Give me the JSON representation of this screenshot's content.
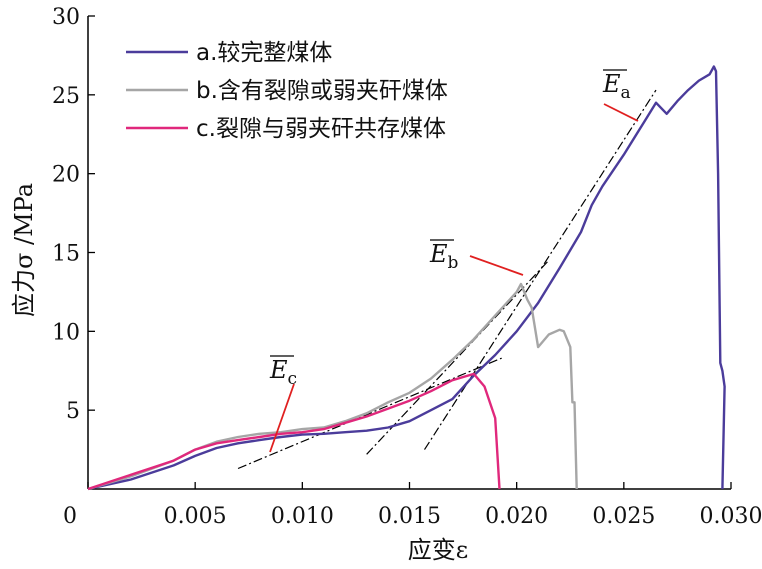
{
  "chart_data": {
    "type": "line",
    "xlabel": "应变ε",
    "ylabel": "应力σ /MPa",
    "xlim": [
      0,
      0.03
    ],
    "ylim": [
      0,
      30
    ],
    "x_ticks": [
      0,
      0.005,
      0.01,
      0.015,
      0.02,
      0.025,
      0.03
    ],
    "x_tick_labels": [
      "0",
      "0.005",
      "0.010",
      "0.015",
      "0.020",
      "0.025",
      "0.030"
    ],
    "y_ticks": [
      5,
      10,
      15,
      20,
      25,
      30
    ],
    "y_tick_labels": [
      "5",
      "10",
      "15",
      "20",
      "25",
      "30"
    ],
    "grid": false,
    "legend_position": "top-left",
    "series": [
      {
        "name": "a.较完整煤体",
        "color": "#4B3C9B",
        "points": [
          [
            0,
            0
          ],
          [
            0.002,
            0.6
          ],
          [
            0.004,
            1.5
          ],
          [
            0.005,
            2.1
          ],
          [
            0.006,
            2.6
          ],
          [
            0.007,
            2.9
          ],
          [
            0.008,
            3.1
          ],
          [
            0.009,
            3.3
          ],
          [
            0.01,
            3.45
          ],
          [
            0.011,
            3.5
          ],
          [
            0.012,
            3.6
          ],
          [
            0.013,
            3.7
          ],
          [
            0.014,
            3.9
          ],
          [
            0.015,
            4.3
          ],
          [
            0.016,
            5.0
          ],
          [
            0.017,
            5.7
          ],
          [
            0.018,
            7.2
          ],
          [
            0.019,
            8.5
          ],
          [
            0.02,
            10.0
          ],
          [
            0.021,
            11.8
          ],
          [
            0.022,
            14.0
          ],
          [
            0.023,
            16.3
          ],
          [
            0.0235,
            18.0
          ],
          [
            0.024,
            19.2
          ],
          [
            0.025,
            21.2
          ],
          [
            0.026,
            23.4
          ],
          [
            0.0265,
            24.5
          ],
          [
            0.027,
            23.8
          ],
          [
            0.0275,
            24.6
          ],
          [
            0.028,
            25.3
          ],
          [
            0.0285,
            25.9
          ],
          [
            0.029,
            26.3
          ],
          [
            0.0292,
            26.8
          ],
          [
            0.0293,
            26.5
          ],
          [
            0.0294,
            20.0
          ],
          [
            0.0295,
            8.0
          ],
          [
            0.0296,
            7.5
          ],
          [
            0.0297,
            6.5
          ],
          [
            0.0296,
            0.0
          ]
        ]
      },
      {
        "name": "b.含有裂隙或弱夹矸煤体",
        "color": "#A6A6A6",
        "points": [
          [
            0,
            0
          ],
          [
            0.002,
            0.8
          ],
          [
            0.004,
            1.8
          ],
          [
            0.005,
            2.5
          ],
          [
            0.006,
            3.0
          ],
          [
            0.007,
            3.3
          ],
          [
            0.008,
            3.5
          ],
          [
            0.009,
            3.6
          ],
          [
            0.01,
            3.8
          ],
          [
            0.011,
            3.9
          ],
          [
            0.012,
            4.3
          ],
          [
            0.013,
            4.8
          ],
          [
            0.014,
            5.5
          ],
          [
            0.015,
            6.1
          ],
          [
            0.016,
            7.0
          ],
          [
            0.017,
            8.2
          ],
          [
            0.018,
            9.5
          ],
          [
            0.019,
            11.0
          ],
          [
            0.02,
            12.5
          ],
          [
            0.0202,
            13.0
          ],
          [
            0.0205,
            12.0
          ],
          [
            0.0207,
            11.5
          ],
          [
            0.021,
            9.0
          ],
          [
            0.0215,
            9.8
          ],
          [
            0.022,
            10.1
          ],
          [
            0.0222,
            10.0
          ],
          [
            0.0225,
            9.0
          ],
          [
            0.0226,
            5.5
          ],
          [
            0.0227,
            5.5
          ],
          [
            0.0228,
            0.0
          ]
        ]
      },
      {
        "name": "c.裂隙与弱夹矸共存煤体",
        "color": "#E0287C",
        "points": [
          [
            0,
            0
          ],
          [
            0.002,
            0.9
          ],
          [
            0.004,
            1.8
          ],
          [
            0.005,
            2.5
          ],
          [
            0.006,
            2.9
          ],
          [
            0.007,
            3.1
          ],
          [
            0.008,
            3.3
          ],
          [
            0.009,
            3.5
          ],
          [
            0.01,
            3.6
          ],
          [
            0.011,
            3.8
          ],
          [
            0.012,
            4.2
          ],
          [
            0.013,
            4.6
          ],
          [
            0.014,
            5.1
          ],
          [
            0.015,
            5.6
          ],
          [
            0.016,
            6.2
          ],
          [
            0.017,
            6.9
          ],
          [
            0.018,
            7.3
          ],
          [
            0.0185,
            6.5
          ],
          [
            0.019,
            4.5
          ],
          [
            0.0192,
            0.0
          ]
        ]
      }
    ],
    "tangent_lines": [
      {
        "label": "E",
        "subscript": "a",
        "points": [
          [
            0.0157,
            2.5
          ],
          [
            0.0265,
            25.3
          ]
        ]
      },
      {
        "label": "E",
        "subscript": "b",
        "points": [
          [
            0.013,
            2.2
          ],
          [
            0.0215,
            14.5
          ]
        ]
      },
      {
        "label": "E",
        "subscript": "c",
        "points": [
          [
            0.007,
            1.3
          ],
          [
            0.0193,
            8.3
          ]
        ]
      }
    ],
    "annotations": [
      {
        "label": "E",
        "subscript": "a"
      },
      {
        "label": "E",
        "subscript": "b"
      },
      {
        "label": "E",
        "subscript": "c"
      }
    ]
  }
}
